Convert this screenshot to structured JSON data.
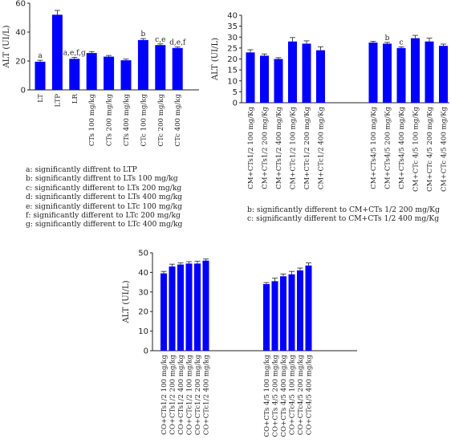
{
  "chart_data": [
    {
      "type": "bar",
      "ylabel": "ALT (UI/L)",
      "ylim": [
        0,
        60
      ],
      "yticks": [
        0,
        20,
        40,
        60
      ],
      "categories": [
        "LT",
        "LTP",
        "LR",
        "CTs 100 mg/kg",
        "CTs 200 mg/kg",
        "CTs 400 mg/kg",
        "CTc 100 mg/kg",
        "CTc 200 mg/kg",
        "CTc 400 mg/kg"
      ],
      "values": [
        19.5,
        52,
        21.5,
        25.5,
        23,
        20.5,
        34.5,
        31,
        29
      ],
      "errors": [
        1.0,
        3.0,
        1.0,
        1.0,
        0.8,
        0.8,
        1.0,
        0.8,
        0.8
      ],
      "annotations": [
        "a",
        "",
        "a,e,f,g",
        "",
        "",
        "",
        "b",
        "c,e",
        "d,e,f"
      ],
      "footnotes": [
        "a: significantly diffrent to LTP",
        "b: significantly diffrent to LTs 100 mg/kg",
        "c: significantly different to LTs 200 mg/kg",
        "d: significantly different to LTs 400 mg/kg",
        "e: significantly different to LTc 100 mg/kg",
        "f: significantly different to LTc 200 mg/kg",
        "g: significantly different to LTc 400 mg/kg"
      ]
    },
    {
      "type": "bar",
      "ylabel": "ALT (UI/L)",
      "ylim": [
        0,
        40
      ],
      "yticks": [
        0,
        5,
        10,
        15,
        20,
        25,
        30,
        35,
        40
      ],
      "groups": [
        {
          "categories": [
            "CM+CTs1/2 100 mg/Kg",
            "CM+CTs1/2 200 mg/Kg",
            "CM+CTs1/2 400 mg/Kg",
            "CM+CTc1/2 100 mg/Kg",
            "CM+CTc1/2 200 mg/Kg",
            "CM+CTc1/2 400 mg/Kg"
          ],
          "values": [
            23,
            21.5,
            20,
            28,
            27,
            24
          ],
          "errors": [
            1.2,
            0.8,
            0.6,
            1.8,
            1.3,
            1.6
          ],
          "annotations": [
            "",
            "",
            "",
            "",
            "",
            ""
          ]
        },
        {
          "categories": [
            "CM+CTs4/5 100 mg/Kg",
            "CM+CTs4/5 200 mg/Kg",
            "CM+CTs4/5 400 mg/Kg",
            "CM+CTc 4/5 100 mg/Kg",
            "CM+CTc 4/5 200 mg/Kg",
            "CM+CTc 4/5 400 mg/Kg"
          ],
          "values": [
            27.5,
            27,
            25,
            29.5,
            28,
            26
          ],
          "errors": [
            0.6,
            0.6,
            0.5,
            1.3,
            1.5,
            0.8
          ],
          "annotations": [
            "",
            "b",
            "c",
            "",
            "",
            ""
          ]
        }
      ],
      "footnotes": [
        "b: significantly different to CM+CTs 1/2 200 mg/Kg",
        "c: significantly different to CM+CTs 1/2 400 mg/Kg"
      ]
    },
    {
      "type": "bar",
      "ylabel": "ALT (UI/L)",
      "ylim": [
        0,
        50
      ],
      "yticks": [
        0,
        10,
        20,
        30,
        40,
        50
      ],
      "groups": [
        {
          "categories": [
            "CO+CTs1/2 100 mg/kg",
            "CO+CTs1/2 200 mg/kg",
            "CO+CTs1/2 400 mg/kg",
            "CO+CTc1/2 100 mg/kg",
            "CO+CTc1/2 200 mg/kg",
            "CO+CTc1/2 400 mg/kg"
          ],
          "values": [
            39.5,
            43,
            44,
            44.5,
            44.5,
            46
          ],
          "errors": [
            1.0,
            1.2,
            0.8,
            1.0,
            1.2,
            0.8
          ]
        },
        {
          "categories": [
            "CO+CTs 4/5 100 mg/kg",
            "CO+CTs 4/5 200 mg/kg",
            "CO+CTs 4/5 400 mg/kg",
            "CO+CTc4/5 100 mg/kg",
            "CO+CTc4/5 200 mg/kg",
            "CO+CTc4/5 400 mg/kg"
          ],
          "values": [
            34,
            35.5,
            38,
            39,
            41,
            43.5
          ],
          "errors": [
            0.8,
            1.5,
            1.2,
            1.5,
            1.2,
            1.3
          ]
        }
      ]
    }
  ]
}
